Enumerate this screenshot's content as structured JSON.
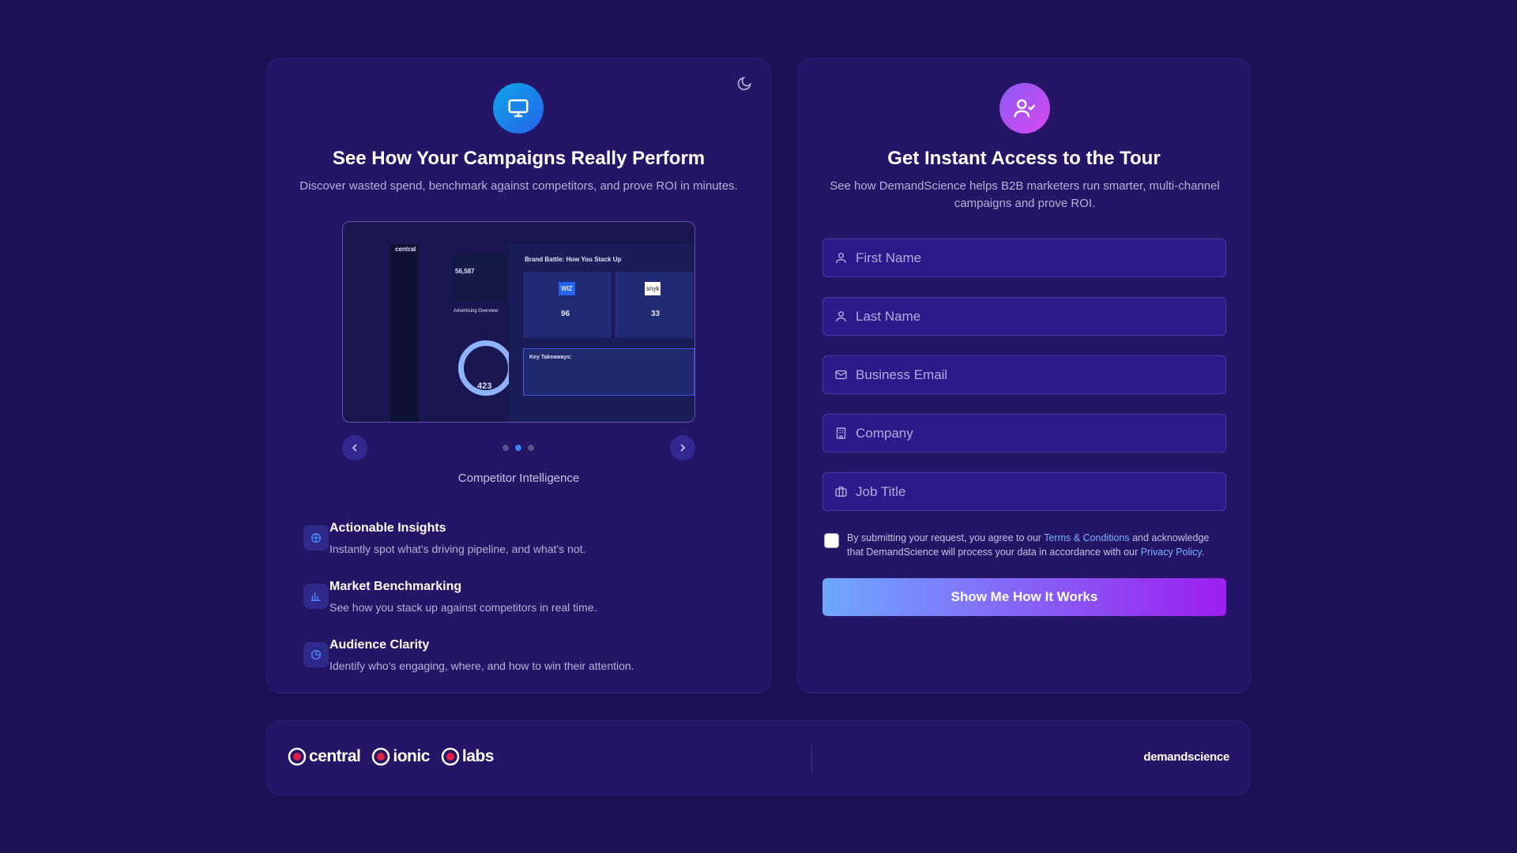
{
  "left": {
    "title": "See How Your Campaigns Really Perform",
    "subtitle": "Discover wasted spend, benchmark against competitors, and prove ROI in minutes.",
    "preview": {
      "brand": "central",
      "metric": "56,587",
      "section": "Advertising Overview",
      "battle": "Brand Battle: How You Stack Up",
      "wiz": "WIZ",
      "wiz_score": "96",
      "snyk": "snyk",
      "snyk_score": "33",
      "takeaways": "Key Takeaways:",
      "total": "423"
    },
    "caption": "Competitor Intelligence",
    "features": [
      {
        "title": "Actionable Insights",
        "desc": "Instantly spot what's driving pipeline, and what's not."
      },
      {
        "title": "Market Benchmarking",
        "desc": "See how you stack up against competitors in real time."
      },
      {
        "title": "Audience Clarity",
        "desc": "Identify who's engaging, where, and how to win their attention."
      }
    ]
  },
  "form": {
    "title": "Get Instant Access to the Tour",
    "subtitle": "See how DemandScience helps B2B marketers run smarter, multi-channel campaigns and prove ROI.",
    "fields": [
      "First Name",
      "Last Name",
      "Business Email",
      "Company",
      "Job Title"
    ],
    "consent": {
      "before": "By submitting your request, you agree to our ",
      "terms": "Terms & Conditions",
      "middle": " and acknowledge that DemandScience will process your data in accordance with our ",
      "privacy": "Privacy Policy",
      "after": "."
    },
    "button": "Show Me How It Works"
  },
  "footer": {
    "brands": [
      "central",
      "ionic",
      "labs"
    ],
    "company": "demandscience"
  }
}
